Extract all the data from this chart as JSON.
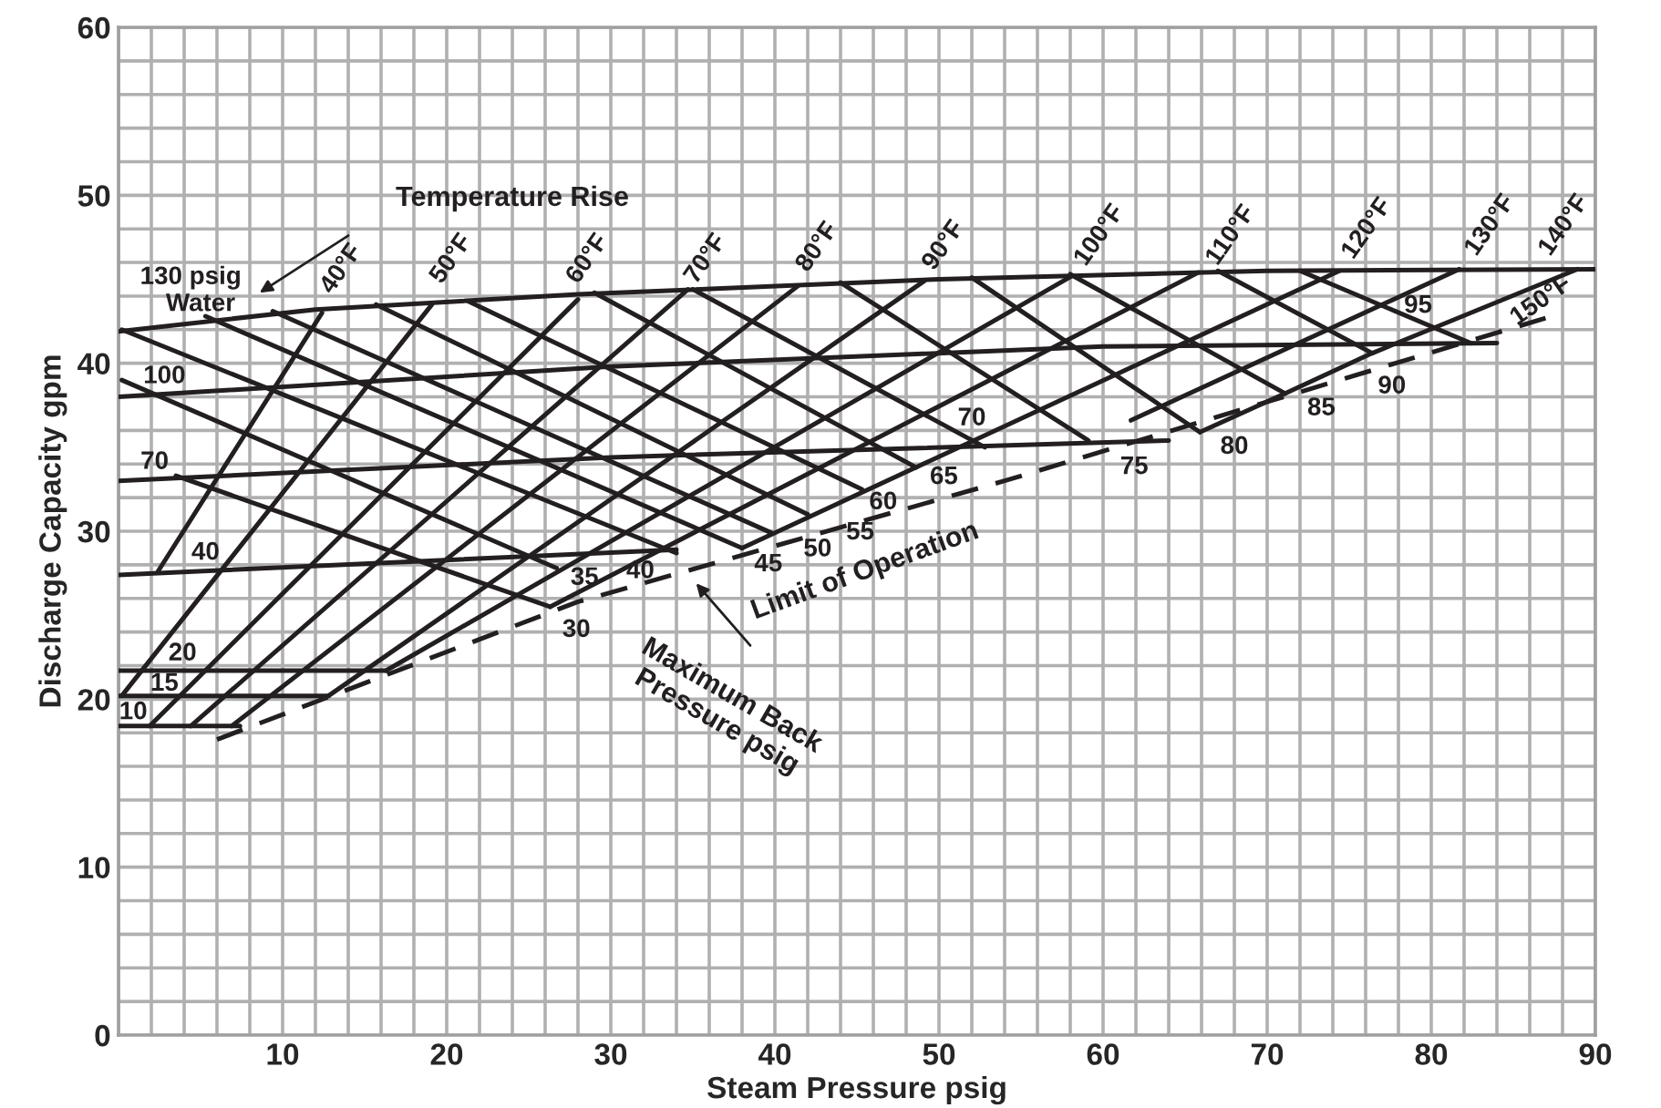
{
  "chart_data": {
    "type": "line",
    "xlabel": "Steam Pressure psig",
    "ylabel": "Discharge Capacity gpm",
    "xlim": [
      0,
      90
    ],
    "ylim": [
      0,
      60
    ],
    "xticks": [
      {
        "value": 0,
        "label": null
      },
      {
        "value": 2,
        "label": null
      },
      {
        "value": 4,
        "label": null
      },
      {
        "value": 6,
        "label": null
      },
      {
        "value": 8,
        "label": null
      },
      10,
      {
        "value": 12,
        "label": null
      },
      {
        "value": 14,
        "label": null
      },
      {
        "value": 16,
        "label": null
      },
      {
        "value": 18,
        "label": null
      },
      20,
      {
        "value": 22,
        "label": null
      },
      {
        "value": 24,
        "label": null
      },
      {
        "value": 26,
        "label": null
      },
      {
        "value": 28,
        "label": null
      },
      30,
      {
        "value": 32,
        "label": null
      },
      {
        "value": 34,
        "label": null
      },
      {
        "value": 36,
        "label": null
      },
      {
        "value": 38,
        "label": null
      },
      40,
      {
        "value": 42,
        "label": null
      },
      {
        "value": 44,
        "label": null
      },
      {
        "value": 46,
        "label": null
      },
      {
        "value": 48,
        "label": null
      },
      50,
      {
        "value": 52,
        "label": null
      },
      {
        "value": 54,
        "label": null
      },
      {
        "value": 56,
        "label": null
      },
      {
        "value": 58,
        "label": null
      },
      60,
      {
        "value": 62,
        "label": null
      },
      {
        "value": 64,
        "label": null
      },
      {
        "value": 66,
        "label": null
      },
      {
        "value": 68,
        "label": null
      },
      70,
      {
        "value": 72,
        "label": null
      },
      {
        "value": 74,
        "label": null
      },
      {
        "value": 76,
        "label": null
      },
      {
        "value": 78,
        "label": null
      },
      80,
      {
        "value": 82,
        "label": null
      },
      {
        "value": 84,
        "label": null
      },
      {
        "value": 86,
        "label": null
      },
      {
        "value": 88,
        "label": null
      },
      90
    ],
    "yticks": [
      0,
      {
        "value": 2,
        "label": null
      },
      {
        "value": 4,
        "label": null
      },
      {
        "value": 6,
        "label": null
      },
      {
        "value": 8,
        "label": null
      },
      10,
      {
        "value": 12,
        "label": null
      },
      {
        "value": 14,
        "label": null
      },
      {
        "value": 16,
        "label": null
      },
      {
        "value": 18,
        "label": null
      },
      20,
      {
        "value": 22,
        "label": null
      },
      {
        "value": 24,
        "label": null
      },
      {
        "value": 26,
        "label": null
      },
      {
        "value": 28,
        "label": null
      },
      30,
      {
        "value": 32,
        "label": null
      },
      {
        "value": 34,
        "label": null
      },
      {
        "value": 36,
        "label": null
      },
      {
        "value": 38,
        "label": null
      },
      40,
      {
        "value": 42,
        "label": null
      },
      {
        "value": 44,
        "label": null
      },
      {
        "value": 46,
        "label": null
      },
      {
        "value": 48,
        "label": null
      },
      50,
      {
        "value": 52,
        "label": null
      },
      {
        "value": 54,
        "label": null
      },
      {
        "value": 56,
        "label": null
      },
      {
        "value": 58,
        "label": null
      },
      60
    ],
    "grid": true,
    "legend": false,
    "series": [
      {
        "color": "#231f20",
        "x": [
          0,
          12,
          28,
          50,
          70,
          90
        ],
        "values": [
          41.9,
          43.2,
          44.1,
          45.0,
          45.5,
          45.6
        ]
      },
      {
        "color": "#231f20",
        "x": [
          0,
          30,
          60,
          84
        ],
        "values": [
          38.0,
          39.8,
          41.0,
          41.2
        ]
      },
      {
        "color": "#231f20",
        "x": [
          0,
          30,
          64
        ],
        "values": [
          33.0,
          34.4,
          35.4
        ]
      },
      {
        "color": "#231f20",
        "x": [
          0,
          34
        ],
        "values": [
          27.4,
          28.9
        ]
      },
      {
        "color": "#231f20",
        "x": [
          0,
          16.3
        ],
        "values": [
          21.7,
          21.7
        ]
      },
      {
        "color": "#231f20",
        "x": [
          0,
          12.8
        ],
        "values": [
          20.2,
          20.2
        ]
      },
      {
        "color": "#231f20",
        "x": [
          0,
          7.4
        ],
        "values": [
          18.4,
          18.4
        ]
      },
      {
        "color": "#231f20",
        "x": [
          3.5,
          26.3
        ],
        "values": [
          33.3,
          25.5
        ]
      },
      {
        "color": "#231f20",
        "x": [
          0.2,
          26.7
        ],
        "values": [
          39.0,
          27.8
        ]
      },
      {
        "color": "#231f20",
        "x": [
          0.2,
          34
        ],
        "values": [
          42.0,
          28.7
        ]
      },
      {
        "color": "#231f20",
        "x": [
          5.3,
          38
        ],
        "values": [
          42.8,
          29.0
        ]
      },
      {
        "color": "#231f20",
        "x": [
          9.4,
          39.8
        ],
        "values": [
          43.1,
          29.9
        ]
      },
      {
        "color": "#231f20",
        "x": [
          15.7,
          42
        ],
        "values": [
          43.5,
          31.0
        ]
      },
      {
        "color": "#231f20",
        "x": [
          21.3,
          45.3
        ],
        "values": [
          43.7,
          32.5
        ]
      },
      {
        "color": "#231f20",
        "x": [
          29,
          48.6
        ],
        "values": [
          44.2,
          33.8
        ]
      },
      {
        "color": "#231f20",
        "x": [
          35,
          52.8
        ],
        "values": [
          44.4,
          35.0
        ]
      },
      {
        "color": "#231f20",
        "x": [
          44,
          59.1
        ],
        "values": [
          44.8,
          35.4
        ]
      },
      {
        "color": "#231f20",
        "x": [
          52,
          65.9
        ],
        "values": [
          45.1,
          35.9
        ]
      },
      {
        "color": "#231f20",
        "x": [
          58,
          71.1
        ],
        "values": [
          45.3,
          38.2
        ]
      },
      {
        "color": "#231f20",
        "x": [
          67,
          76.4
        ],
        "values": [
          45.5,
          40.6
        ]
      },
      {
        "color": "#231f20",
        "x": [
          72,
          82.4
        ],
        "values": [
          45.5,
          41.2
        ]
      },
      {
        "color": "#231f20",
        "x": [
          2.4,
          12.4
        ],
        "values": [
          27.6,
          43.0
        ]
      },
      {
        "color": "#231f20",
        "x": [
          0.2,
          19.1
        ],
        "values": [
          20.2,
          43.5
        ]
      },
      {
        "color": "#231f20",
        "x": [
          1.9,
          28
        ],
        "values": [
          18.4,
          43.8
        ]
      },
      {
        "color": "#231f20",
        "x": [
          4.4,
          34.7
        ],
        "values": [
          18.4,
          44.4
        ]
      },
      {
        "color": "#231f20",
        "x": [
          6.9,
          41.4
        ],
        "values": [
          18.4,
          44.6
        ]
      },
      {
        "color": "#231f20",
        "x": [
          12.8,
          49.1
        ],
        "values": [
          20.2,
          44.9
        ]
      },
      {
        "color": "#231f20",
        "x": [
          16.3,
          58.1
        ],
        "values": [
          21.7,
          45.2
        ]
      },
      {
        "color": "#231f20",
        "x": [
          26.3,
          65.8
        ],
        "values": [
          25.5,
          45.4
        ]
      },
      {
        "color": "#231f20",
        "x": [
          38,
          74.4
        ],
        "values": [
          29.0,
          45.5
        ]
      },
      {
        "color": "#231f20",
        "x": [
          61.7,
          81.7
        ],
        "values": [
          36.6,
          45.6
        ]
      },
      {
        "color": "#231f20",
        "x": [
          65.9,
          71.1,
          76.4,
          88.9
        ],
        "values": [
          35.9,
          38.2,
          40.6,
          45.6
        ]
      },
      {
        "color": "#231f20",
        "line_style": "dashed",
        "x": [
          6,
          28,
          54,
          87
        ],
        "values": [
          17.6,
          25.8,
          33.0,
          42.7
        ]
      }
    ],
    "annotations": [
      "130 psig",
      "Water",
      "100",
      "70",
      "40",
      "20",
      "15",
      "10",
      "30",
      "35",
      "40",
      "45",
      "50",
      "55",
      "60",
      "65",
      "70",
      "75",
      "80",
      "85",
      "90",
      "95",
      "40°F",
      "50°F",
      "60°F",
      "70°F",
      "80°F",
      "90°F",
      "100°F",
      "110°F",
      "120°F",
      "130°F",
      "140°F",
      "150°F",
      "Temperature Rise",
      "Limit of Operation",
      "Maximum Back\nPressure psig"
    ]
  }
}
